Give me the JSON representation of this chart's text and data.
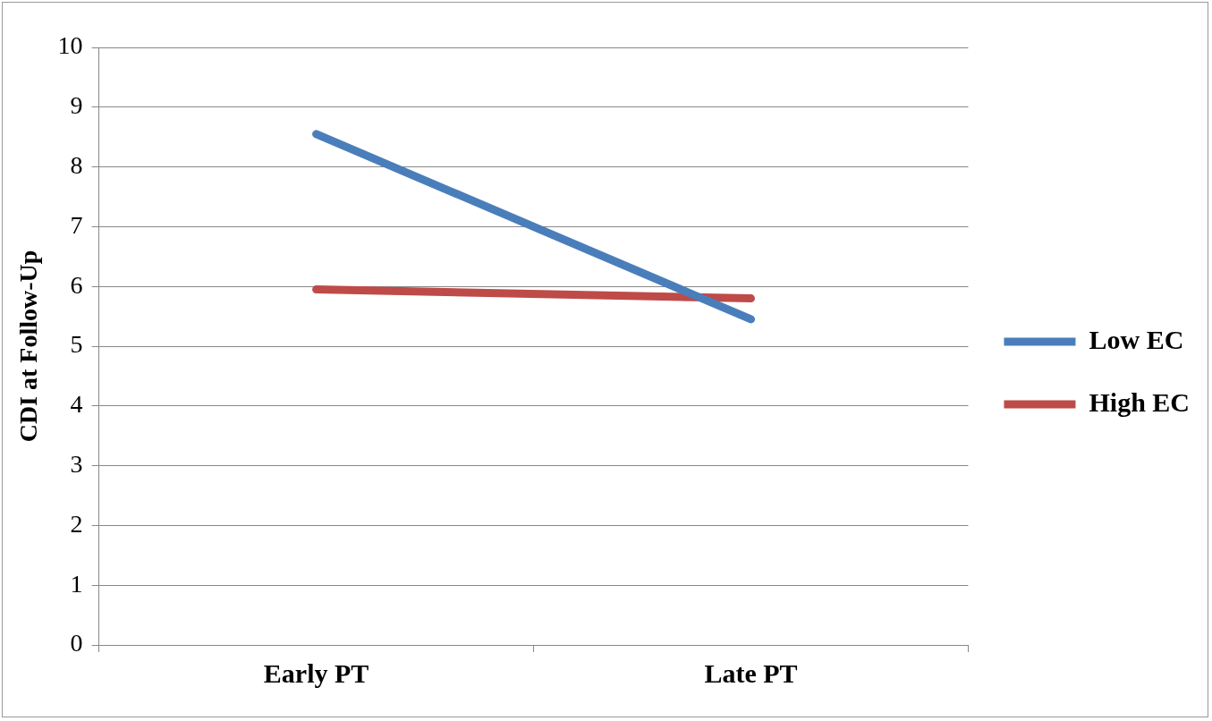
{
  "chart_data": {
    "type": "line",
    "ylabel": "CDI at Follow-Up",
    "categories": [
      "Early PT",
      "Late PT"
    ],
    "series": [
      {
        "name": "Low EC",
        "color": "#4a7ebb",
        "values": [
          8.55,
          5.45
        ]
      },
      {
        "name": "High EC",
        "color": "#be4b48",
        "values": [
          5.95,
          5.8
        ]
      }
    ],
    "ylim": [
      0,
      10
    ],
    "yticks": [
      0,
      1,
      2,
      3,
      4,
      5,
      6,
      7,
      8,
      9,
      10
    ],
    "grid": "y",
    "legend": "right",
    "marker": "none",
    "line_style": "solid"
  }
}
